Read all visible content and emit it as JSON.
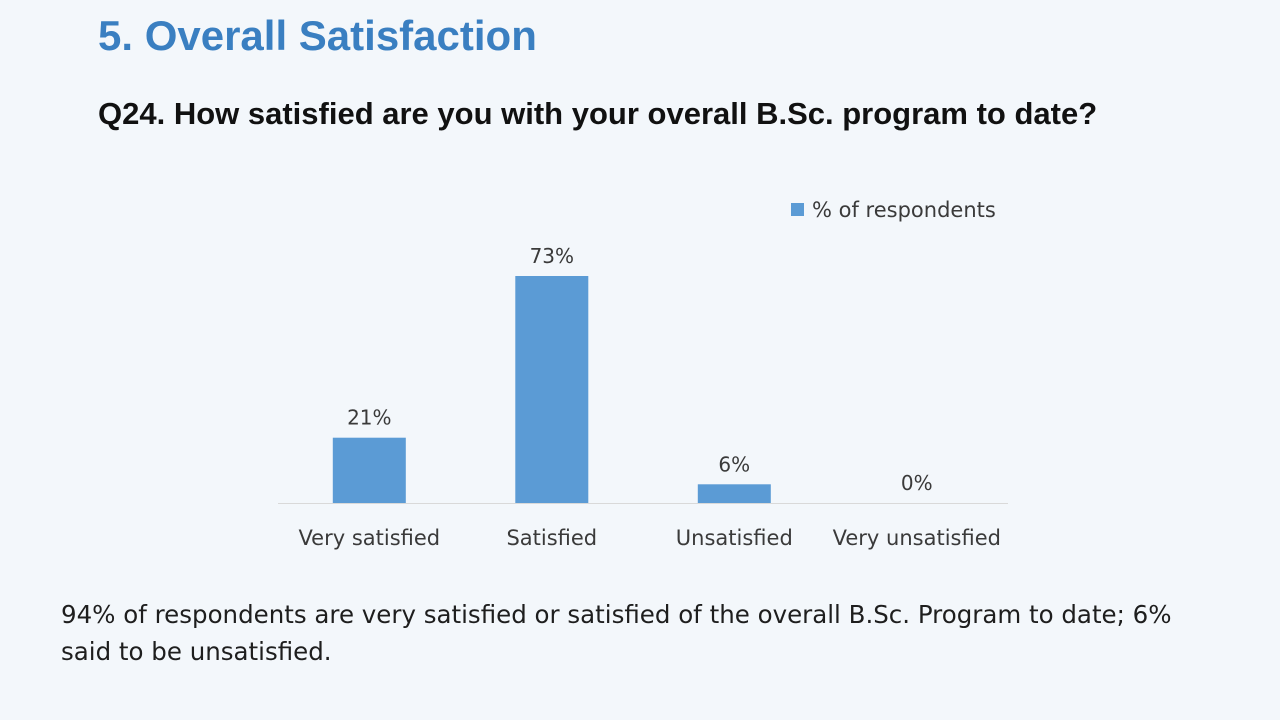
{
  "slide": {
    "title": "5. Overall Satisfaction",
    "question": "Q24. How satisfied are you with your overall B.Sc. program to date?",
    "summary": "94% of respondents are very satisfied or satisfied of the overall B.Sc. Program to date; 6% said to be unsatisfied."
  },
  "colors": {
    "title": "#3a7fc1",
    "bar": "#5b9bd5",
    "background": "#f3f7fb"
  },
  "chart_data": {
    "type": "bar",
    "categories": [
      "Very satisfied",
      "Satisfied",
      "Unsatisfied",
      "Very unsatisfied"
    ],
    "series": [
      {
        "name": "% of respondents",
        "values": [
          21,
          73,
          6,
          0
        ],
        "labels": [
          "21%",
          "73%",
          "6%",
          "0%"
        ]
      }
    ],
    "ylim": [
      0,
      73
    ],
    "grid": false,
    "legend": "top-right"
  }
}
